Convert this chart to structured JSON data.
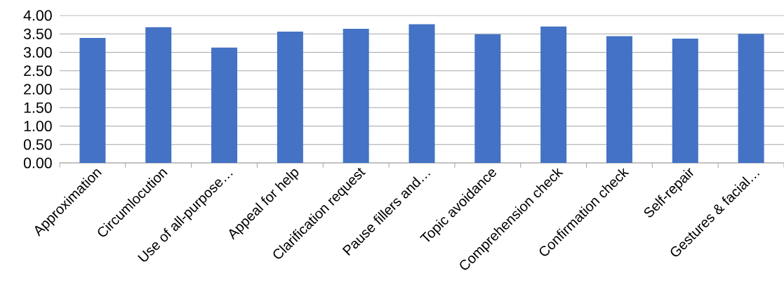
{
  "chart_data": {
    "type": "bar",
    "categories": [
      "Approximation",
      "Circumlocution",
      "Use of all-purpose…",
      "Appeal for help",
      "Clarification request",
      "Pause fillers and…",
      "Topic avoidance",
      "Comprehension check",
      "Confirmation check",
      "Self-repair",
      "Gestures & facial…"
    ],
    "values": [
      3.39,
      3.68,
      3.13,
      3.56,
      3.64,
      3.76,
      3.49,
      3.7,
      3.44,
      3.37,
      3.5
    ],
    "color": "#4472c4",
    "ylim": [
      0,
      4
    ],
    "yticks": [
      {
        "value": 0,
        "label": "0.00"
      },
      {
        "value": 0.5,
        "label": "0.50"
      },
      {
        "value": 1,
        "label": "1.00"
      },
      {
        "value": 1.5,
        "label": "1.50"
      },
      {
        "value": 2,
        "label": "2.00"
      },
      {
        "value": 2.5,
        "label": "2.50"
      },
      {
        "value": 3,
        "label": "3.00"
      },
      {
        "value": 3.5,
        "label": "3.50"
      },
      {
        "value": 4,
        "label": "4.00"
      }
    ],
    "grid": "y"
  }
}
